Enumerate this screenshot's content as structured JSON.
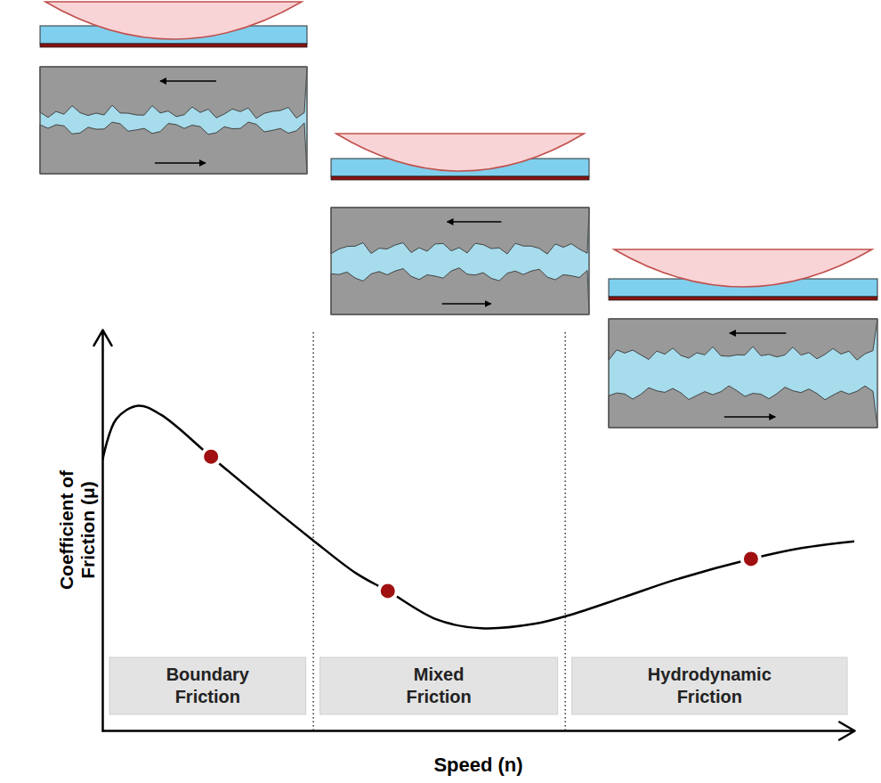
{
  "chart_data": {
    "type": "line",
    "x_label": "Speed (n)",
    "y_label": "Coefficient of Friction (μ)",
    "xlim": [
      0,
      100
    ],
    "ylim": [
      0,
      100
    ],
    "tick_labels": false,
    "grid": false,
    "series": [
      {
        "type": "line",
        "color": "#000000",
        "line_style": "solid",
        "x": [
          0,
          1.8,
          4.7,
          7.7,
          14.4,
          21.9,
          27.8,
          33.7,
          37.9,
          44.4,
          50.3,
          57.4,
          62.1,
          69.2,
          76.3,
          86.2,
          92.9,
          100
        ],
        "values": [
          67.8,
          77.8,
          81.1,
          78.9,
          68.4,
          56.7,
          47.8,
          39.3,
          34.9,
          27.8,
          25.6,
          26.7,
          28.9,
          33.3,
          37.8,
          42.9,
          45.6,
          47.3
        ]
      },
      {
        "type": "scatter",
        "color": "#a01010",
        "marker": "circle",
        "x": [
          14.4,
          37.9,
          86.2
        ],
        "values": [
          68.4,
          34.9,
          42.9
        ]
      }
    ],
    "regions": [
      {
        "label": "Boundary Friction",
        "from": 0,
        "to": 28
      },
      {
        "label": "Mixed Friction",
        "from": 28,
        "to": 61.5
      },
      {
        "label": "Hydrodynamic Friction",
        "from": 61.5,
        "to": 100
      }
    ]
  }
}
